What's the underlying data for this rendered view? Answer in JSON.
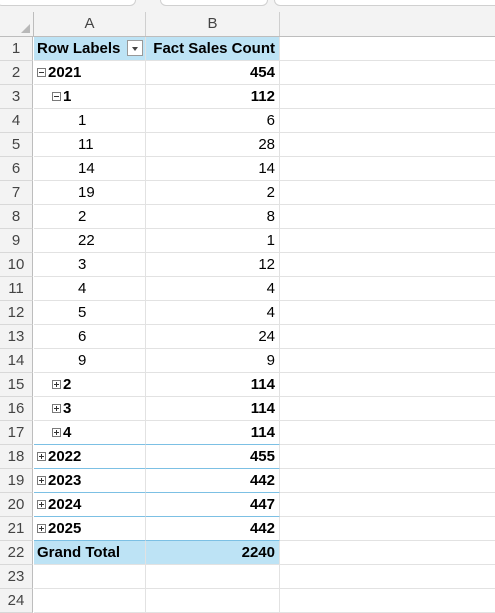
{
  "columns": [
    "A",
    "B"
  ],
  "pivot": {
    "header": {
      "row": "1",
      "row_labels": "Row Labels",
      "value_label": "Fact Sales Count"
    },
    "rows": [
      {
        "row": "2",
        "label": "2021",
        "value": "454",
        "level": 0,
        "toggle": "minus",
        "bold": true
      },
      {
        "row": "3",
        "label": "1",
        "value": "112",
        "level": 1,
        "toggle": "minus",
        "bold": true
      },
      {
        "row": "4",
        "label": "1",
        "value": "6",
        "level": 2,
        "toggle": "",
        "bold": false
      },
      {
        "row": "5",
        "label": "11",
        "value": "28",
        "level": 2,
        "toggle": "",
        "bold": false
      },
      {
        "row": "6",
        "label": "14",
        "value": "14",
        "level": 2,
        "toggle": "",
        "bold": false
      },
      {
        "row": "7",
        "label": "19",
        "value": "2",
        "level": 2,
        "toggle": "",
        "bold": false
      },
      {
        "row": "8",
        "label": "2",
        "value": "8",
        "level": 2,
        "toggle": "",
        "bold": false
      },
      {
        "row": "9",
        "label": "22",
        "value": "1",
        "level": 2,
        "toggle": "",
        "bold": false
      },
      {
        "row": "10",
        "label": "3",
        "value": "12",
        "level": 2,
        "toggle": "",
        "bold": false
      },
      {
        "row": "11",
        "label": "4",
        "value": "4",
        "level": 2,
        "toggle": "",
        "bold": false
      },
      {
        "row": "12",
        "label": "5",
        "value": "4",
        "level": 2,
        "toggle": "",
        "bold": false
      },
      {
        "row": "13",
        "label": "6",
        "value": "24",
        "level": 2,
        "toggle": "",
        "bold": false
      },
      {
        "row": "14",
        "label": "9",
        "value": "9",
        "level": 2,
        "toggle": "",
        "bold": false
      },
      {
        "row": "15",
        "label": "2",
        "value": "114",
        "level": 1,
        "toggle": "plus",
        "bold": true
      },
      {
        "row": "16",
        "label": "3",
        "value": "114",
        "level": 1,
        "toggle": "plus",
        "bold": true
      },
      {
        "row": "17",
        "label": "4",
        "value": "114",
        "level": 1,
        "toggle": "plus",
        "bold": true,
        "sep": true
      },
      {
        "row": "18",
        "label": "2022",
        "value": "455",
        "level": 0,
        "toggle": "plus",
        "bold": true,
        "sep": true
      },
      {
        "row": "19",
        "label": "2023",
        "value": "442",
        "level": 0,
        "toggle": "plus",
        "bold": true,
        "sep": true
      },
      {
        "row": "20",
        "label": "2024",
        "value": "447",
        "level": 0,
        "toggle": "plus",
        "bold": true,
        "sep": true
      },
      {
        "row": "21",
        "label": "2025",
        "value": "442",
        "level": 0,
        "toggle": "plus",
        "bold": true,
        "sep": true
      }
    ],
    "grand_total": {
      "row": "22",
      "label": "Grand Total",
      "value": "2240"
    },
    "empty_rows": [
      "23",
      "24"
    ]
  },
  "colors": {
    "pivot_header_fill": "#bde3f5",
    "header_bg": "#f3f3f3",
    "separator": "#7cc0e4"
  },
  "icons": {
    "expand": "plus-box-icon",
    "collapse": "minus-box-icon",
    "filter": "dropdown-arrow-icon"
  }
}
